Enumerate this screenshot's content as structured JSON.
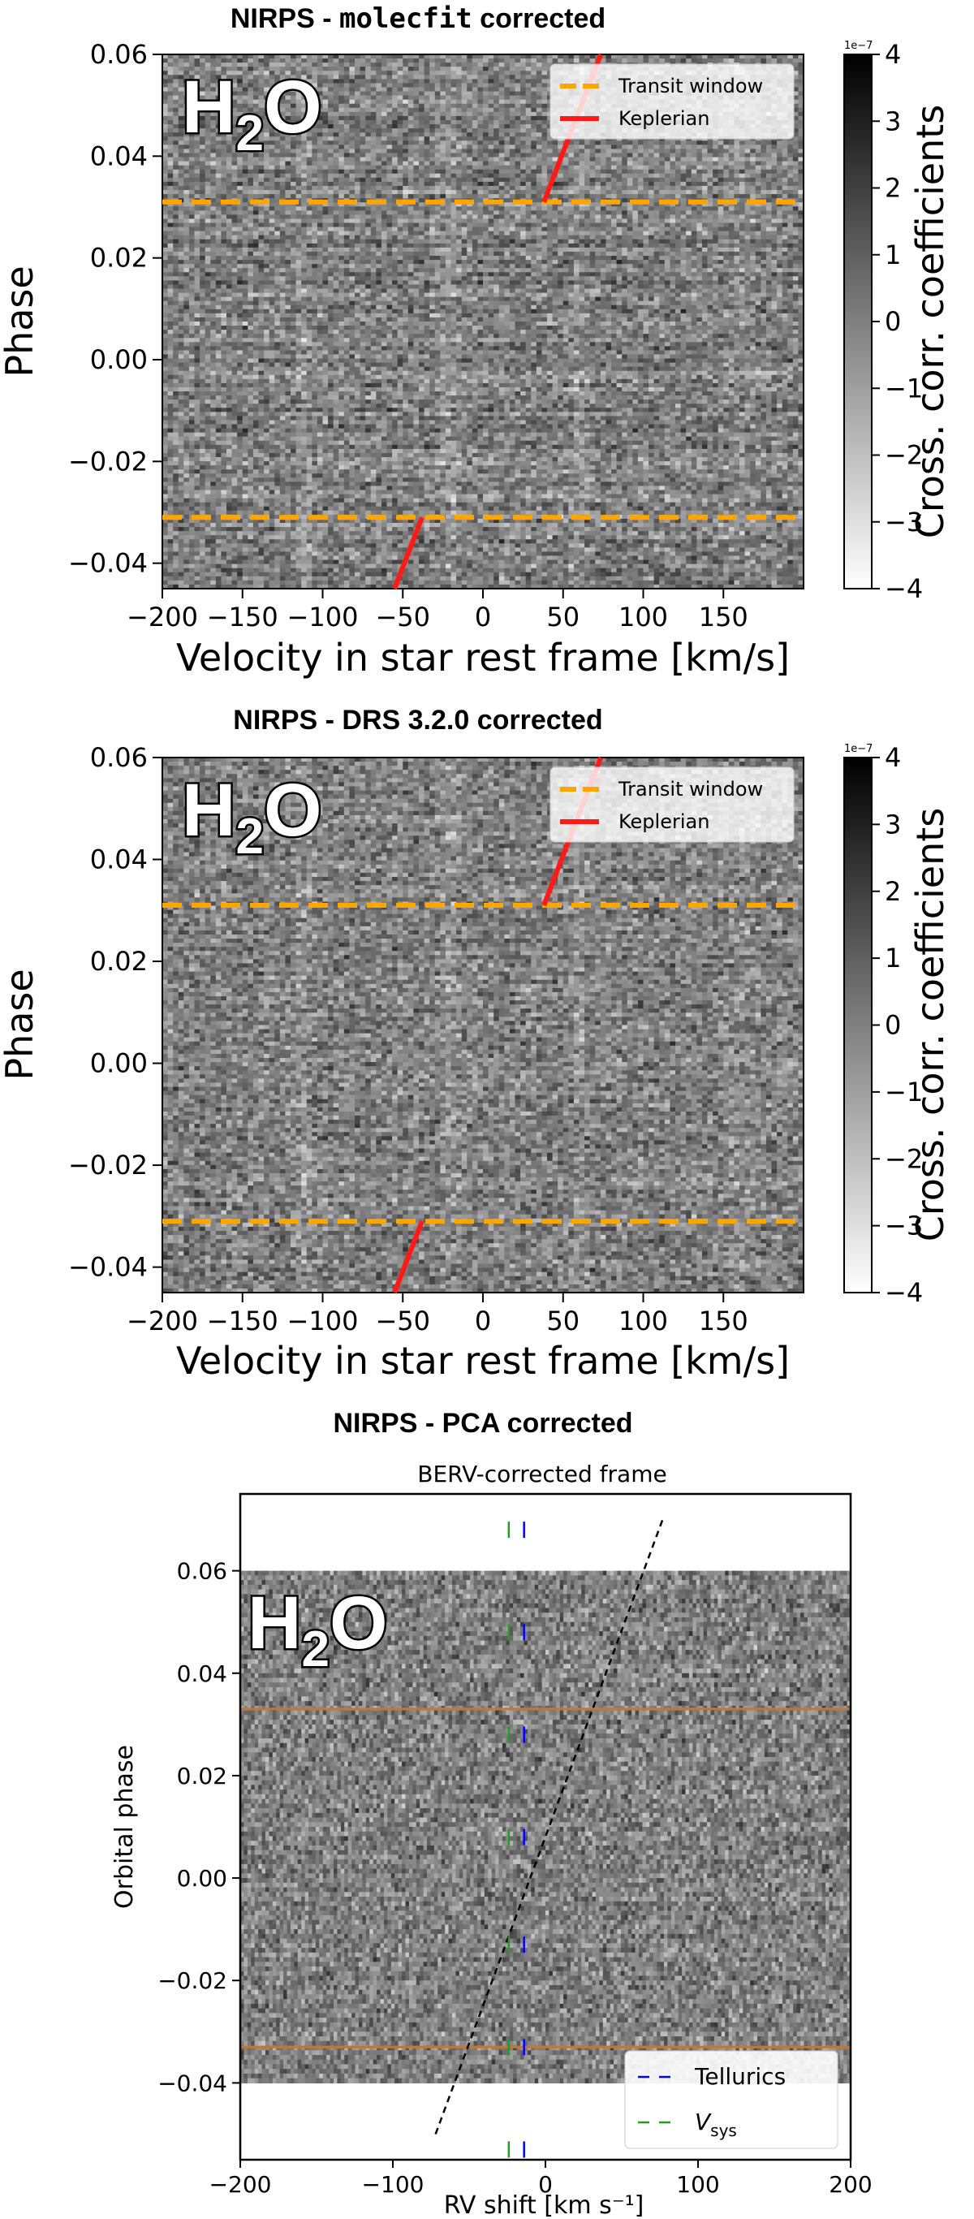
{
  "chart_data": [
    {
      "type": "heatmap",
      "title_prefix": "NIRPS - ",
      "title_code": "molecfit",
      "title_suffix": " corrected",
      "species_label": "H",
      "species_sub": "2",
      "species_tail": "O",
      "xlabel": "Velocity in star rest frame [km/s]",
      "ylabel": "Phase",
      "xlim": [
        -200,
        200
      ],
      "ylim": [
        -0.045,
        0.06
      ],
      "xticks": [
        -200,
        -150,
        -100,
        -50,
        0,
        50,
        100,
        150
      ],
      "xtick_labels": [
        "−200",
        "−150",
        "−100",
        "−50",
        "0",
        "50",
        "100",
        "150"
      ],
      "yticks": [
        0.06,
        0.04,
        0.02,
        0.0,
        -0.02,
        -0.04
      ],
      "ytick_labels": [
        "0.06",
        "0.04",
        "0.02",
        "0.00",
        "−0.02",
        "−0.04"
      ],
      "transit_window": [
        -0.031,
        0.031
      ],
      "keplerian": {
        "v_at_egress": 38,
        "v_at_ingress": -38,
        "slope_kms_per_phase": 1225
      },
      "legend": [
        "Transit window",
        "Keplerian"
      ],
      "colorbar": {
        "label": "Cross. corr. coefficients",
        "scale_label": "1e−7",
        "range": [
          -4,
          4
        ],
        "ticks": [
          4,
          3,
          2,
          1,
          0,
          -1,
          -2,
          -3,
          -4
        ],
        "tick_labels": [
          "4",
          "3",
          "2",
          "1",
          "0",
          "−1",
          "−2",
          "−3",
          "−4"
        ]
      }
    },
    {
      "type": "heatmap",
      "title": "NIRPS - DRS 3.2.0 corrected",
      "species_label": "H",
      "species_sub": "2",
      "species_tail": "O",
      "xlabel": "Velocity in star rest frame [km/s]",
      "ylabel": "Phase",
      "xlim": [
        -200,
        200
      ],
      "ylim": [
        -0.045,
        0.06
      ],
      "xticks": [
        -200,
        -150,
        -100,
        -50,
        0,
        50,
        100,
        150
      ],
      "xtick_labels": [
        "−200",
        "−150",
        "−100",
        "−50",
        "0",
        "50",
        "100",
        "150"
      ],
      "yticks": [
        0.06,
        0.04,
        0.02,
        0.0,
        -0.02,
        -0.04
      ],
      "ytick_labels": [
        "0.06",
        "0.04",
        "0.02",
        "0.00",
        "−0.02",
        "−0.04"
      ],
      "transit_window": [
        -0.031,
        0.031
      ],
      "keplerian": {
        "v_at_egress": 38,
        "v_at_ingress": -38,
        "slope_kms_per_phase": 1225
      },
      "legend": [
        "Transit window",
        "Keplerian"
      ],
      "colorbar": {
        "label": "Cross. corr. coefficients",
        "scale_label": "1e−7",
        "range": [
          -4,
          4
        ],
        "ticks": [
          4,
          3,
          2,
          1,
          0,
          -1,
          -2,
          -3,
          -4
        ],
        "tick_labels": [
          "4",
          "3",
          "2",
          "1",
          "0",
          "−1",
          "−2",
          "−3",
          "−4"
        ]
      }
    },
    {
      "type": "heatmap",
      "title": "NIRPS - PCA corrected",
      "subtitle": "BERV-corrected frame",
      "species_label": "H",
      "species_sub": "2",
      "species_tail": "O",
      "xlabel": "RV shift [km s⁻¹]",
      "ylabel": "Orbital phase",
      "xlim": [
        -200,
        200
      ],
      "ylim": [
        -0.055,
        0.075
      ],
      "data_ylim": [
        -0.04,
        0.06
      ],
      "xticks": [
        -200,
        -100,
        0,
        100,
        200
      ],
      "xtick_labels": [
        "−200",
        "−100",
        "0",
        "100",
        "200"
      ],
      "yticks": [
        0.06,
        0.04,
        0.02,
        0.0,
        -0.02,
        -0.04
      ],
      "ytick_labels": [
        "0.06",
        "0.04",
        "0.02",
        "0.00",
        "−0.02",
        "−0.04"
      ],
      "transit_window": [
        -0.033,
        0.033
      ],
      "keplerian_dashed": {
        "v_at_phase_0": -10,
        "slope_kms_per_phase": 1240,
        "phase_range": [
          -0.05,
          0.07
        ]
      },
      "tellurics_marker_v": -14,
      "vsys_marker_v": -24,
      "marker_phases": [
        0.068,
        0.048,
        0.028,
        0.008,
        -0.013,
        -0.033,
        -0.053
      ],
      "legend": [
        "Tellurics",
        "V",
        "sys"
      ]
    }
  ]
}
